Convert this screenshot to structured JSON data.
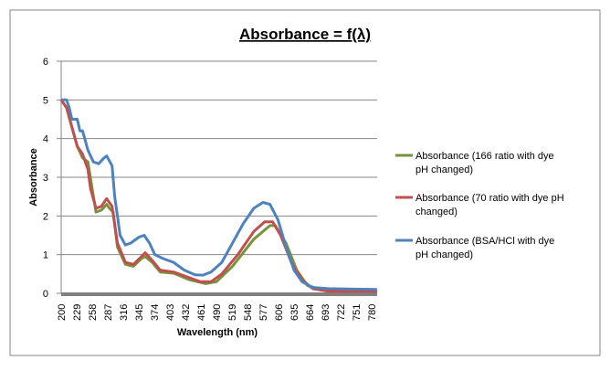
{
  "chart_data": {
    "type": "line",
    "title": "Absorbance = f(λ)",
    "xlabel": "Wavelength (nm)",
    "ylabel": "Absorbance",
    "xlim": [
      200,
      790
    ],
    "ylim": [
      0,
      6
    ],
    "yticks": [
      0,
      1,
      2,
      3,
      4,
      5,
      6
    ],
    "xticks": [
      200,
      229,
      258,
      287,
      316,
      345,
      374,
      403,
      432,
      461,
      490,
      519,
      548,
      577,
      606,
      635,
      664,
      693,
      722,
      751,
      780
    ],
    "grid": "horizontal",
    "legend_position": "right",
    "series": [
      {
        "name": "Absorbance (166 ratio with dye pH changed)",
        "color": "#77933C",
        "x": [
          200,
          210,
          220,
          230,
          240,
          250,
          258,
          265,
          275,
          285,
          290,
          297,
          305,
          320,
          335,
          350,
          357,
          370,
          385,
          410,
          440,
          470,
          490,
          520,
          560,
          590,
          600,
          620,
          640,
          660,
          690,
          790
        ],
        "y": [
          5,
          4.8,
          4.3,
          3.8,
          3.5,
          3.4,
          2.7,
          2.1,
          2.15,
          2.3,
          2.2,
          2.1,
          1.2,
          0.75,
          0.7,
          0.9,
          0.95,
          0.8,
          0.55,
          0.52,
          0.35,
          0.25,
          0.3,
          0.7,
          1.4,
          1.75,
          1.75,
          1.3,
          0.6,
          0.2,
          0.08,
          0.07
        ]
      },
      {
        "name": "Absorbance (70 ratio with  dye pH changed)",
        "color": "#C0504D",
        "x": [
          200,
          210,
          220,
          230,
          240,
          250,
          255,
          265,
          275,
          285,
          295,
          305,
          320,
          335,
          350,
          357,
          370,
          385,
          410,
          430,
          460,
          480,
          500,
          530,
          560,
          580,
          595,
          610,
          630,
          650,
          670,
          700,
          790
        ],
        "y": [
          5,
          4.8,
          4.3,
          3.8,
          3.6,
          3.2,
          2.7,
          2.2,
          2.25,
          2.45,
          2.25,
          1.3,
          0.8,
          0.75,
          0.95,
          1.05,
          0.85,
          0.6,
          0.55,
          0.45,
          0.3,
          0.3,
          0.5,
          1.0,
          1.6,
          1.85,
          1.85,
          1.5,
          0.8,
          0.35,
          0.12,
          0.05,
          0.05
        ]
      },
      {
        "name": "Absorbance (BSA/HCl with dye pH changed)",
        "color": "#4F81BD",
        "x": [
          200,
          210,
          215,
          220,
          225,
          230,
          235,
          240,
          250,
          260,
          270,
          280,
          285,
          295,
          300,
          305,
          310,
          320,
          330,
          345,
          355,
          365,
          375,
          390,
          410,
          430,
          450,
          465,
          480,
          500,
          520,
          540,
          560,
          577,
          590,
          605,
          620,
          635,
          650,
          670,
          700,
          790
        ],
        "y": [
          5,
          5,
          4.8,
          4.5,
          4.5,
          4.5,
          4.2,
          4.2,
          3.7,
          3.4,
          3.35,
          3.5,
          3.55,
          3.3,
          2.5,
          2.0,
          1.5,
          1.25,
          1.3,
          1.45,
          1.5,
          1.3,
          1.0,
          0.9,
          0.8,
          0.6,
          0.48,
          0.47,
          0.55,
          0.8,
          1.3,
          1.8,
          2.2,
          2.35,
          2.3,
          1.9,
          1.2,
          0.6,
          0.3,
          0.15,
          0.12,
          0.1
        ]
      }
    ],
    "legend_lines": [
      [
        "Absorbance (166 ratio with dye",
        "pH changed)"
      ],
      [
        "Absorbance (70 ratio with  dye pH",
        "changed)"
      ],
      [
        "Absorbance (BSA/HCl with dye",
        "pH changed)"
      ]
    ]
  }
}
